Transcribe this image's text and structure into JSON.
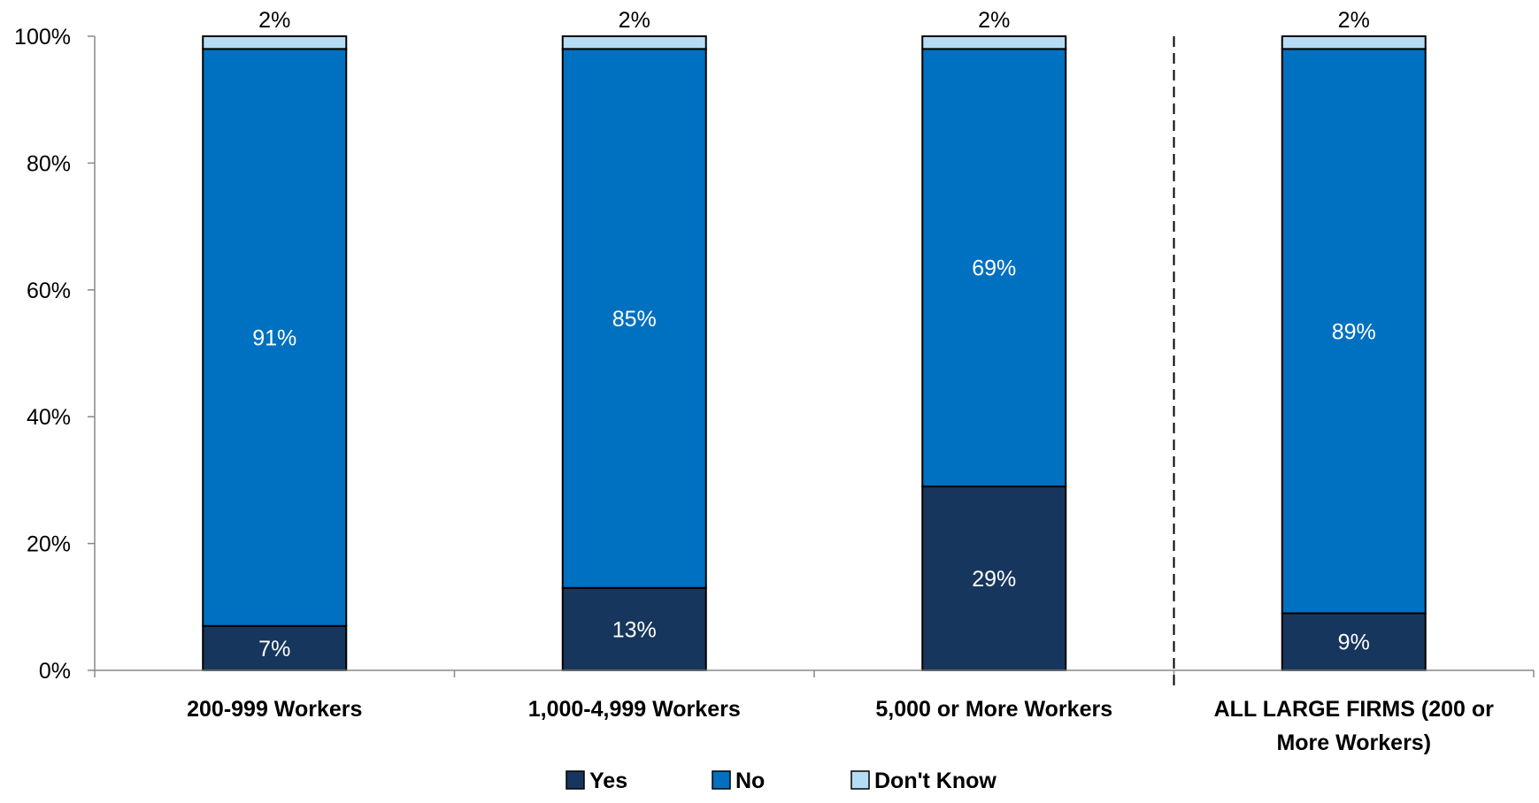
{
  "chart_data": {
    "type": "bar",
    "stacked": true,
    "categories": [
      [
        "200-999 Workers"
      ],
      [
        "1,000-4,999 Workers"
      ],
      [
        "5,000 or More Workers"
      ],
      [
        "ALL LARGE FIRMS (200 or",
        "More Workers)"
      ]
    ],
    "series": [
      {
        "name": "Yes",
        "values": [
          7,
          13,
          29,
          9
        ],
        "labels": [
          "7%",
          "13%",
          "29%",
          "9%"
        ],
        "color": "#17365D",
        "label_color": "#FFFFFF"
      },
      {
        "name": "No",
        "values": [
          91,
          85,
          69,
          89
        ],
        "labels": [
          "91%",
          "85%",
          "69%",
          "89%"
        ],
        "color": "#0070C0",
        "label_color": "#FFFFFF"
      },
      {
        "name": "Don't Know",
        "values": [
          2,
          2,
          2,
          2
        ],
        "labels": [
          "2%",
          "2%",
          "2%",
          "2%"
        ],
        "color": "#B4DCF5",
        "label_color": "#000000"
      }
    ],
    "y_ticks": [
      "0%",
      "20%",
      "40%",
      "60%",
      "80%",
      "100%"
    ],
    "y_tick_values": [
      0,
      20,
      40,
      60,
      80,
      100
    ],
    "ylim": [
      0,
      100
    ],
    "separator_after_category": 3,
    "legend_position": "bottom",
    "grid": false
  }
}
